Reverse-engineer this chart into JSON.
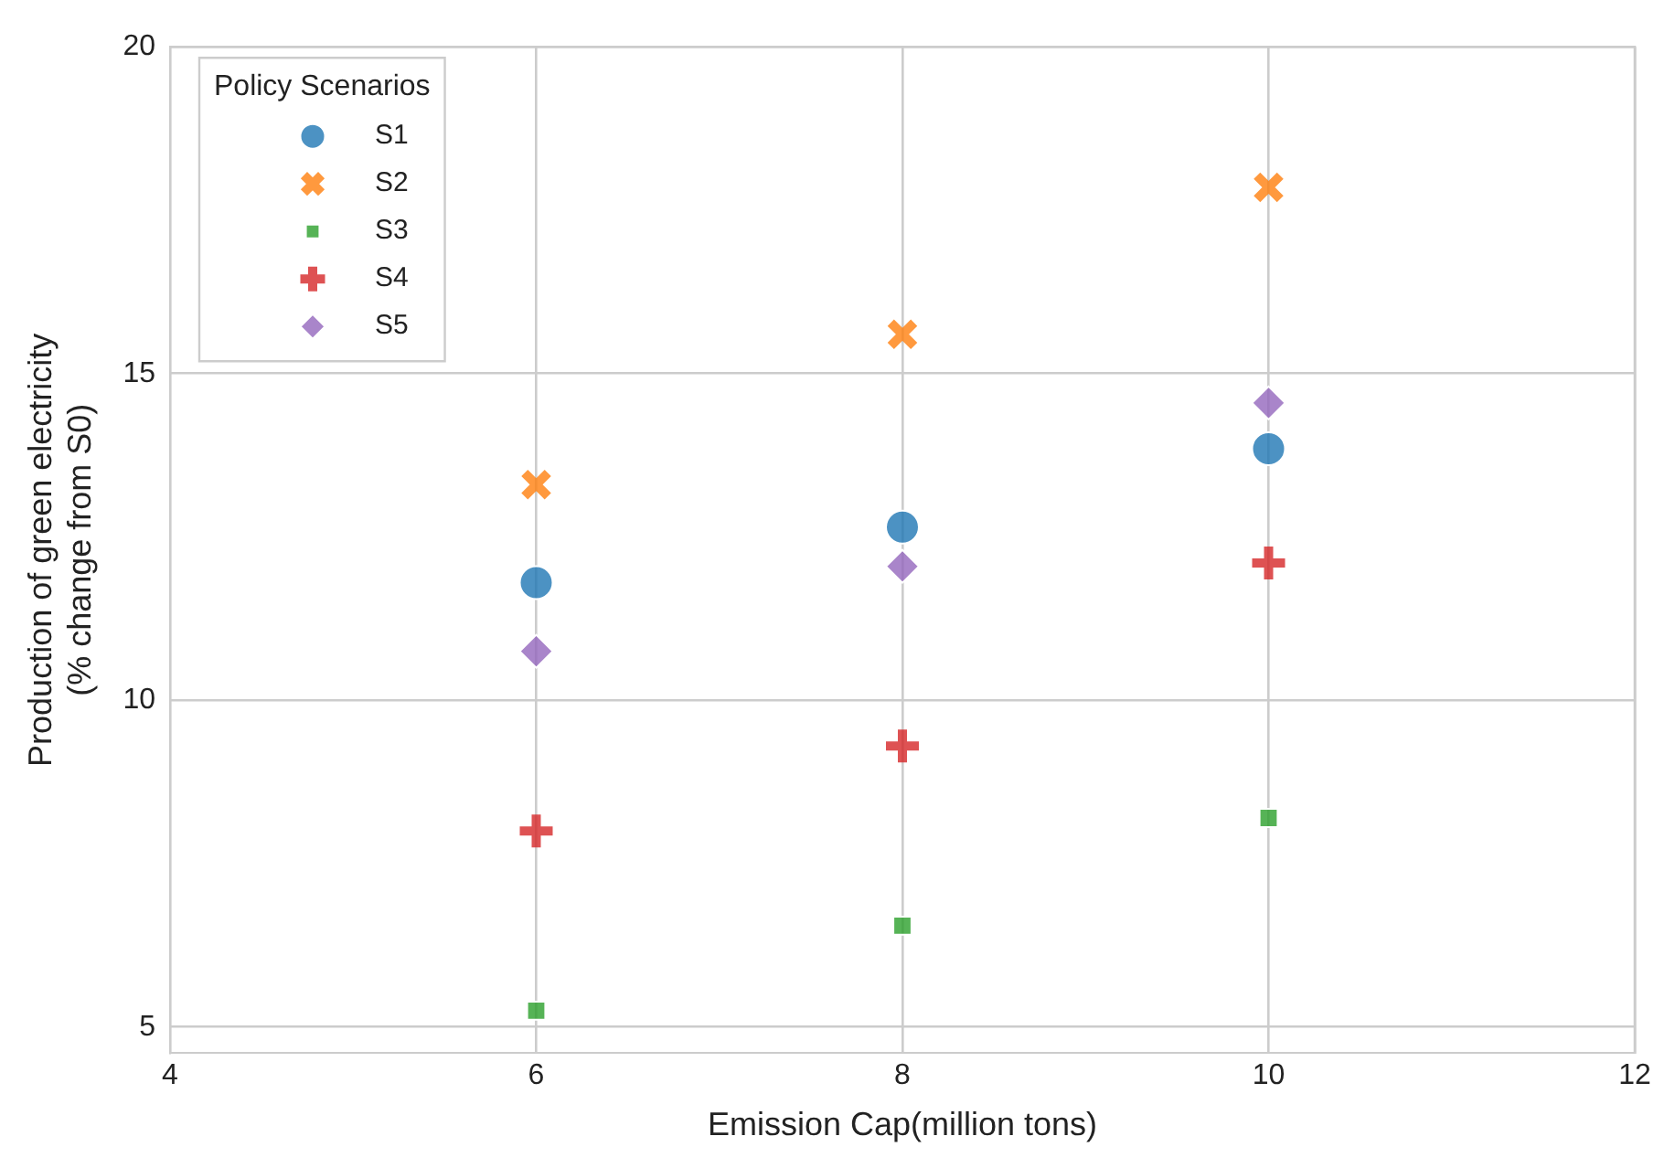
{
  "chart_data": {
    "type": "scatter",
    "xlabel": "Emission Cap(million tons)",
    "ylabel": "Production of green electricity\n(% change from S0)",
    "legend_title": "Policy Scenarios",
    "legend": "top left",
    "grid": true,
    "xlim": [
      4,
      12
    ],
    "xticks": [
      4,
      6,
      8,
      10,
      12
    ],
    "ylim": [
      4.6,
      20
    ],
    "yticks": [
      5,
      10,
      15,
      20
    ],
    "x": [
      6,
      8,
      10
    ],
    "series": [
      {
        "name": "S1",
        "color": "#1f77b4",
        "marker": "circle",
        "values": [
          11.8,
          12.65,
          13.85
        ]
      },
      {
        "name": "S2",
        "color": "#ff7f0e",
        "marker": "x",
        "values": [
          13.3,
          15.6,
          17.85
        ]
      },
      {
        "name": "S3",
        "color": "#2ca02c",
        "marker": "square",
        "values": [
          5.25,
          6.55,
          8.2
        ]
      },
      {
        "name": "S4",
        "color": "#d62728",
        "marker": "cross",
        "values": [
          8,
          9.3,
          12.1
        ]
      },
      {
        "name": "S5",
        "color": "#9467bd",
        "marker": "diamond",
        "values": [
          10.75,
          12.05,
          14.55
        ]
      }
    ]
  }
}
